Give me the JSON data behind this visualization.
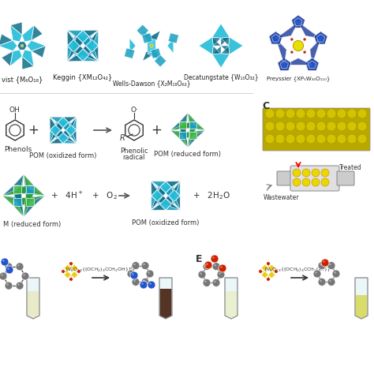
{
  "bg_color": "#ffffff",
  "pom_labels": [
    "vist {M₆O₁₈}",
    "Keggin {XM₁₂O₄₂}",
    "Wells-Dawson {X₂M₁₈O₆₂}",
    "Decatungstate {W₁₀O₃₂}",
    "Preyssler {XP₅W₃₀O₁₁₀}"
  ],
  "label_fontsize": 6.0,
  "colors": {
    "teal1": "#1a9fc0",
    "teal2": "#0e6e8a",
    "teal3": "#22bcd8",
    "cyan": "#00d4e8",
    "green1": "#3cb84a",
    "green2": "#28a035",
    "blue1": "#1a3a9a",
    "blue2": "#2255cc",
    "yellow": "#e8e000",
    "red": "#cc2200",
    "gray": "#888888",
    "brown": "#4a1800",
    "beige": "#f0f0d0"
  }
}
